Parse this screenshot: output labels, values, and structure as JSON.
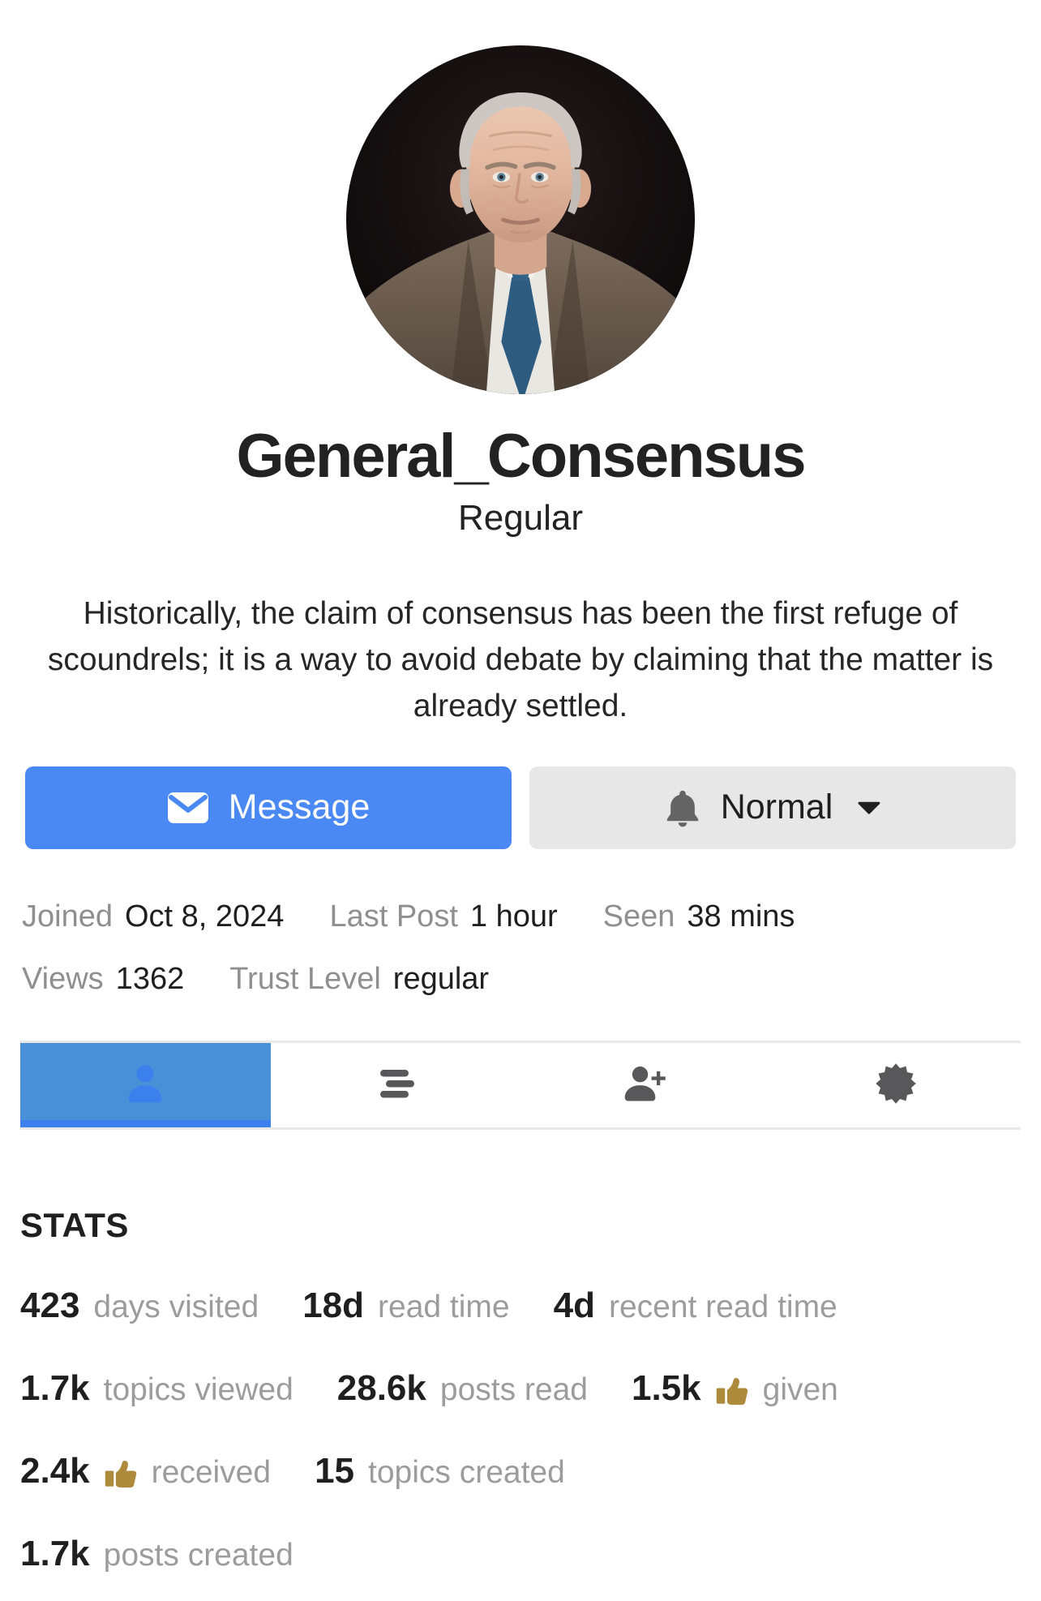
{
  "profile": {
    "username": "General_Consensus",
    "title": "Regular",
    "bio": "Historically, the claim of consensus has been the first refuge of scoundrels; it is a way to avoid debate by claiming that the matter is already settled.",
    "avatar_description": "portrait of an older man, gray hair, tweed jacket, blue tie, dark background"
  },
  "actions": {
    "message_label": "Message",
    "message_icon": "envelope-icon",
    "notification_level": "Normal",
    "notification_icon": "bell-icon",
    "notification_caret": "caret-down-icon"
  },
  "meta": {
    "joined_label": "Joined",
    "joined_value": "Oct 8, 2024",
    "last_post_label": "Last Post",
    "last_post_value": "1 hour",
    "seen_label": "Seen",
    "seen_value": "38 mins",
    "views_label": "Views",
    "views_value": "1362",
    "trust_label": "Trust Level",
    "trust_value": "regular"
  },
  "tabs": {
    "active_id": "summary",
    "items": [
      {
        "id": "summary",
        "icon": "user-icon"
      },
      {
        "id": "activity",
        "icon": "stream-icon"
      },
      {
        "id": "invites",
        "icon": "user-plus-icon"
      },
      {
        "id": "badges",
        "icon": "certificate-icon"
      }
    ]
  },
  "stats": {
    "heading": "STATS",
    "rows": [
      [
        {
          "value": "423",
          "label": "days visited"
        },
        {
          "value": "18d",
          "label": "read time"
        },
        {
          "value": "4d",
          "label": "recent read time"
        }
      ],
      [
        {
          "value": "1.7k",
          "label": "topics viewed"
        },
        {
          "value": "28.6k",
          "label": "posts read"
        },
        {
          "value": "1.5k",
          "label": "given",
          "icon": "thumbs-up-icon"
        }
      ],
      [
        {
          "value": "2.4k",
          "label": "received",
          "icon": "thumbs-up-icon"
        },
        {
          "value": "15",
          "label": "topics created"
        }
      ],
      [
        {
          "value": "1.7k",
          "label": "posts created"
        }
      ]
    ]
  },
  "colors": {
    "accent_blue": "#4a89f4",
    "active_tab_bg": "#4a90d8",
    "active_tab_accent": "#3c80ee",
    "button_gray_bg": "#e7e7e7",
    "icon_gray": "#58585a",
    "meta_label_gray": "#8f8f8f",
    "stat_label_gray": "#9c9c9c",
    "thumb_gold": "#ae8a3c",
    "border_gray": "#e9e9e9",
    "page_background": "#ffffff"
  }
}
